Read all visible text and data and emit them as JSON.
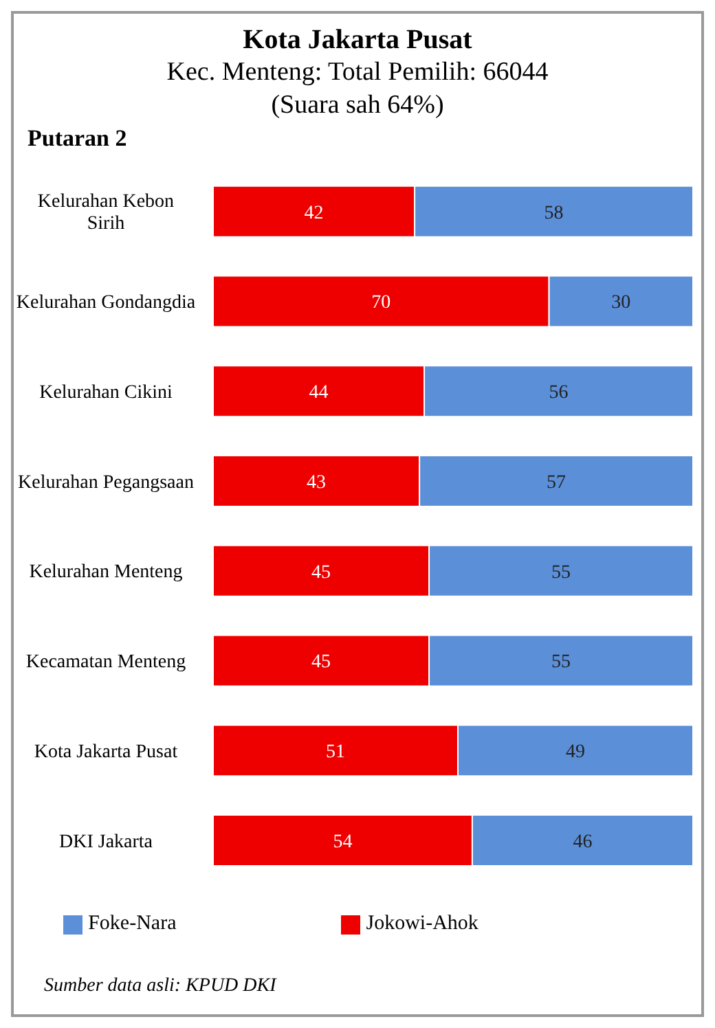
{
  "chart_data": {
    "type": "bar",
    "orientation": "horizontal",
    "stacked": true,
    "title": "Kota Jakarta Pusat",
    "subtitle": "Kec. Menteng: Total Pemilih: 66044\n(Suara sah 64%)",
    "annotations": [
      "Putaran 2",
      "Sumber data asli: KPUD DKI"
    ],
    "categories": [
      "Kelurahan Kebon Sirih",
      "Kelurahan Gondangdia",
      "Kelurahan Cikini",
      "Kelurahan Pegangsaan",
      "Kelurahan Menteng",
      "Kecamatan Menteng",
      "Kota Jakarta Pusat",
      "DKI Jakarta"
    ],
    "series": [
      {
        "name": "Jokowi-Ahok",
        "color": "#ee0000",
        "values": [
          42,
          70,
          44,
          43,
          45,
          45,
          51,
          54
        ]
      },
      {
        "name": "Foke-Nara",
        "color": "#5b8fd8",
        "values": [
          58,
          30,
          56,
          57,
          55,
          55,
          49,
          46
        ]
      }
    ],
    "xlim": [
      0,
      100
    ],
    "tick_labels": "y",
    "data_labels": true,
    "legend": "bottom",
    "grid": false
  }
}
